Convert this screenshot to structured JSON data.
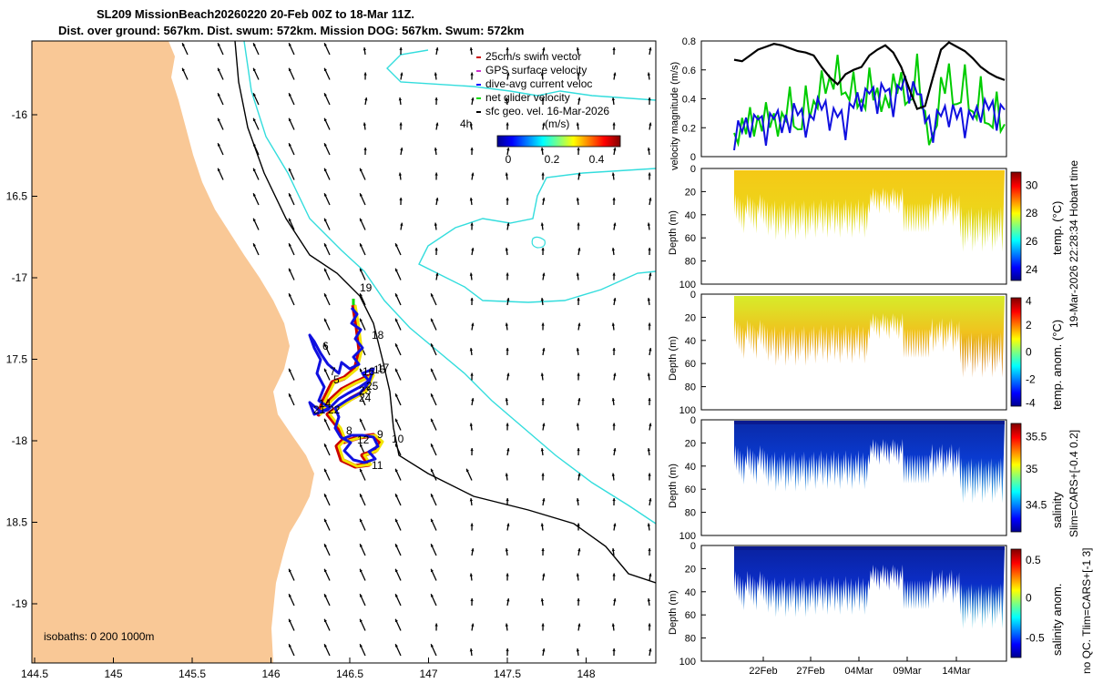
{
  "header": {
    "title_line1": "SL209 MissionBeach20260220 20-Feb 00Z to 18-Mar 11Z.",
    "title_line2": "Dist. over ground: 567km. Dist. swum: 572km. Mission DOG: 567km. Swum: 572km"
  },
  "map": {
    "lon_ticks": [
      "144.5",
      "145",
      "145.5",
      "146",
      "146.5",
      "147",
      "147.5",
      "148"
    ],
    "lat_ticks": [
      "-16",
      "16.5",
      "-17",
      "17.5",
      "-18",
      "18.5",
      "-19"
    ],
    "isobath_label": "isobaths: 0   200  1000m",
    "scale_label": "4h",
    "colorbar": {
      "label": "(m/s)",
      "ticks": [
        "0",
        "0.2",
        "0.4"
      ]
    },
    "legend": [
      {
        "label": "25cm/s swim vector",
        "color": "#cc0000"
      },
      {
        "label": "GPS surface velocity",
        "color": "#cc33cc"
      },
      {
        "label": "dive-avg current veloc",
        "color": "#0000ff"
      },
      {
        "label": "net glider velocity",
        "color": "#00dd00"
      },
      {
        "label": "sfc geo. vel. 16-Mar-2026",
        "color": "#000000"
      }
    ],
    "waypoints": [
      "19",
      "18",
      "6",
      "7",
      "5",
      "16",
      "15",
      "17",
      "25",
      "23",
      "24",
      "21",
      "22",
      "14",
      "8",
      "9",
      "12",
      "10",
      "11"
    ],
    "colors": {
      "land": "#f9c896",
      "coast200": "#000000",
      "isobath1000": "#33dddd"
    }
  },
  "panels": {
    "velocity": {
      "ylabel": "velocity magnitude (m/s)",
      "yticks": [
        "0.8",
        "0.6",
        "0.4",
        "0.2",
        "0"
      ]
    },
    "temp": {
      "ylabel": "Depth (m)",
      "cbar_label": "temp. (°C)",
      "cbar_ticks": [
        "30",
        "28",
        "26",
        "24"
      ]
    },
    "tempanom": {
      "ylabel": "Depth (m)",
      "cbar_label": "temp. anom. (°C)",
      "cbar_ticks": [
        "4",
        "2",
        "0",
        "-2",
        "-4"
      ]
    },
    "salinity": {
      "ylabel": "Depth (m)",
      "cbar_label": "salinity",
      "cbar_ticks": [
        "35.5",
        "35",
        "34.5"
      ]
    },
    "salanom": {
      "ylabel": "Depth (m)",
      "cbar_label": "salinity anom.",
      "cbar_ticks": [
        "0.5",
        "0",
        "-0.5"
      ]
    },
    "depth_ticks": [
      "0",
      "20",
      "40",
      "60",
      "80",
      "100"
    ],
    "date_ticks": [
      "22Feb",
      "27Feb",
      "04Mar",
      "09Mar",
      "14Mar"
    ]
  },
  "side_text": {
    "line1": "19-Mar-2026 22:28:34 Hobart time",
    "line2": "Slim=CARS+[-0.4 0.2]",
    "line3": "no QC. Tlim=CARS+[-1 3]"
  },
  "chart_data": [
    {
      "type": "line",
      "title": "velocity magnitude",
      "ylabel": "velocity magnitude (m/s)",
      "ylim": [
        0,
        0.8
      ],
      "x_range_days": [
        "20-Feb",
        "18-Mar"
      ],
      "series": [
        {
          "name": "net glider velocity",
          "color": "#000000",
          "values": [
            0.67,
            0.66,
            0.7,
            0.74,
            0.76,
            0.78,
            0.77,
            0.75,
            0.73,
            0.72,
            0.7,
            0.62,
            0.55,
            0.5,
            0.57,
            0.6,
            0.62,
            0.7,
            0.74,
            0.77,
            0.72,
            0.62,
            0.47,
            0.33,
            0.35,
            0.55,
            0.74,
            0.79,
            0.76,
            0.73,
            0.68,
            0.62,
            0.58,
            0.55,
            0.53
          ]
        },
        {
          "name": "dive-avg current veloc",
          "color": "#00cc00",
          "values": [
            0.2,
            0.28,
            0.33,
            0.25,
            0.4,
            0.3,
            0.28,
            0.52,
            0.2,
            0.48,
            0.35,
            0.62,
            0.55,
            0.68,
            0.48,
            0.6,
            0.38,
            0.58,
            0.5,
            0.42,
            0.55,
            0.62,
            0.4,
            0.7,
            0.28,
            0.18,
            0.55,
            0.62,
            0.4,
            0.65,
            0.3,
            0.52,
            0.25,
            0.45,
            0.2
          ]
        },
        {
          "name": "GPS surface velocity",
          "color": "#1010e0",
          "values": [
            0.08,
            0.18,
            0.12,
            0.22,
            0.1,
            0.26,
            0.14,
            0.2,
            0.3,
            0.12,
            0.22,
            0.35,
            0.18,
            0.25,
            0.15,
            0.35,
            0.3,
            0.4,
            0.32,
            0.45,
            0.25,
            0.5,
            0.38,
            0.42,
            0.2,
            0.12,
            0.28,
            0.18,
            0.3,
            0.14,
            0.25,
            0.2,
            0.35,
            0.18,
            0.3
          ]
        }
      ]
    },
    {
      "type": "heatmap",
      "title": "temp. (°C)",
      "ylabel": "Depth (m)",
      "ylim": [
        100,
        0
      ],
      "clim": [
        23,
        31
      ]
    },
    {
      "type": "heatmap",
      "title": "temp. anom. (°C)",
      "ylabel": "Depth (m)",
      "ylim": [
        100,
        0
      ],
      "clim": [
        -4,
        4
      ]
    },
    {
      "type": "heatmap",
      "title": "salinity",
      "ylabel": "Depth (m)",
      "ylim": [
        100,
        0
      ],
      "clim": [
        34.2,
        35.8
      ]
    },
    {
      "type": "heatmap",
      "title": "salinity anom.",
      "ylabel": "Depth (m)",
      "ylim": [
        100,
        0
      ],
      "clim": [
        -0.7,
        0.5
      ]
    }
  ]
}
